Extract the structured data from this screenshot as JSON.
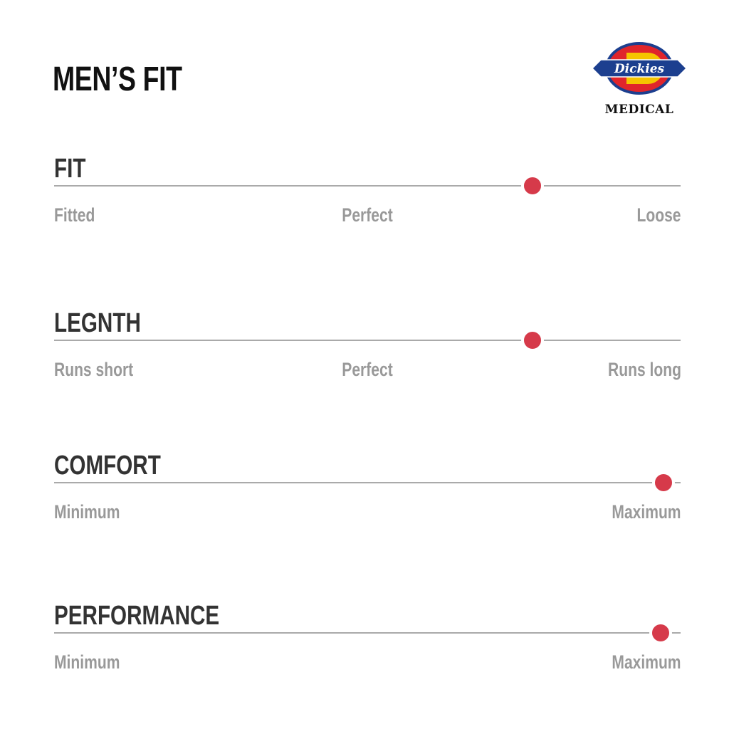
{
  "title": "MEN’S FIT",
  "brand": {
    "logo_text": "Dickies",
    "sub": "MEDICAL",
    "colors": {
      "red": "#e0252b",
      "yellow": "#f5c400",
      "blue": "#1c3f8f"
    }
  },
  "accent": "#d63a4a",
  "sections": [
    {
      "name": "FIT",
      "value": 0.764,
      "labels": {
        "left": "Fitted",
        "center": "Perfect",
        "right": "Loose"
      }
    },
    {
      "name": "LEGNTH",
      "value": 0.764,
      "labels": {
        "left": "Runs short",
        "center": "Perfect",
        "right": "Runs long"
      }
    },
    {
      "name": "COMFORT",
      "value": 0.973,
      "labels": {
        "left": "Minimum",
        "right": "Maximum"
      }
    },
    {
      "name": "PERFORMANCE",
      "value": 0.968,
      "labels": {
        "left": "Minimum",
        "right": "Maximum"
      }
    }
  ]
}
